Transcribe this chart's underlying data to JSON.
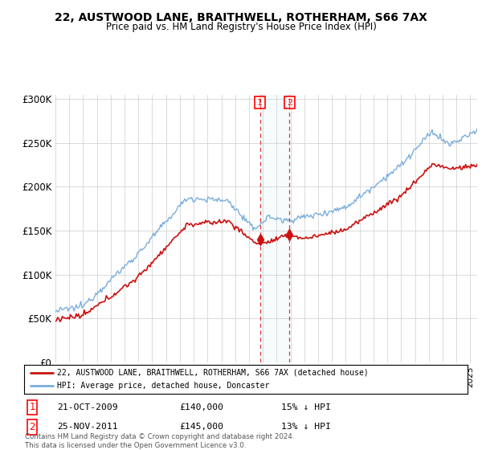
{
  "title": "22, AUSTWOOD LANE, BRAITHWELL, ROTHERHAM, S66 7AX",
  "subtitle": "Price paid vs. HM Land Registry's House Price Index (HPI)",
  "ylabel_ticks": [
    "£0",
    "£50K",
    "£100K",
    "£150K",
    "£200K",
    "£250K",
    "£300K"
  ],
  "ytick_values": [
    0,
    50000,
    100000,
    150000,
    200000,
    250000,
    300000
  ],
  "ylim": [
    0,
    305000
  ],
  "hpi_color": "#7aaddc",
  "price_color": "#cc1111",
  "marker1_year": 2009.8,
  "marker2_year": 2011.92,
  "sale1_price_val": 140000,
  "sale2_price_val": 145000,
  "sale1_date": "21-OCT-2009",
  "sale1_price": "£140,000",
  "sale1_pct": "15% ↓ HPI",
  "sale2_date": "25-NOV-2011",
  "sale2_price": "£145,000",
  "sale2_pct": "13% ↓ HPI",
  "legend_label1": "22, AUSTWOOD LANE, BRAITHWELL, ROTHERHAM, S66 7AX (detached house)",
  "legend_label2": "HPI: Average price, detached house, Doncaster",
  "footer": "Contains HM Land Registry data © Crown copyright and database right 2024.\nThis data is licensed under the Open Government Licence v3.0.",
  "background_color": "#ffffff",
  "grid_color": "#cccccc",
  "xmin": 1995,
  "xmax": 2025.5
}
